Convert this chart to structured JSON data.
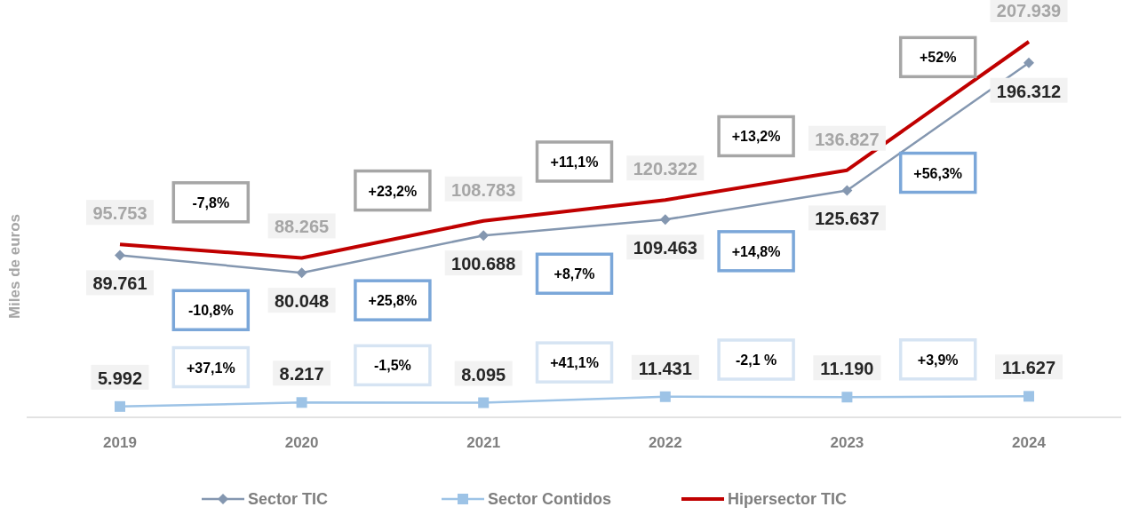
{
  "chart_data": {
    "type": "line",
    "ylabel": "Miles de euros",
    "categories": [
      "2019",
      "2020",
      "2021",
      "2022",
      "2023",
      "2024"
    ],
    "series": [
      {
        "name": "Sector TIC",
        "color": "#8497b0",
        "marker": "diamond",
        "values": [
          89761,
          80048,
          100688,
          109463,
          125637,
          196312
        ],
        "value_labels": [
          "89.761",
          "80.048",
          "100.688",
          "109.463",
          "125.637",
          "196.312"
        ]
      },
      {
        "name": "Sector Contidos",
        "color": "#9dc3e6",
        "marker": "square",
        "values": [
          5992,
          8217,
          8095,
          11431,
          11190,
          11627
        ],
        "value_labels": [
          "5.992",
          "8.217",
          "8.095",
          "11.431",
          "11.190",
          "11.627"
        ]
      },
      {
        "name": "Hipersector TIC",
        "color": "#c00000",
        "marker": "none",
        "values": [
          95753,
          88265,
          108783,
          120322,
          136827,
          207939
        ],
        "value_labels": [
          "95.753",
          "88.265",
          "108.783",
          "120.322",
          "136.827",
          "207.939"
        ]
      }
    ],
    "annotations": [
      "-10,8%",
      "+25,8%",
      "+8,7%",
      "+14,8%",
      "+56,3%",
      "+37,1%",
      "-1,5%",
      "+41,1%",
      "-2,1 %",
      "+3,9%",
      "-7,8%",
      "+23,2%",
      "+11,1%",
      "+13,2%",
      "+52%"
    ],
    "legend": "bottom"
  }
}
